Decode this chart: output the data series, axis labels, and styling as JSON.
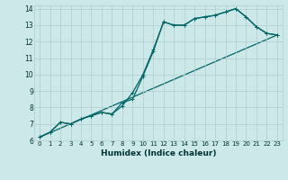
{
  "title": "",
  "xlabel": "Humidex (Indice chaleur)",
  "xlim": [
    -0.5,
    23.5
  ],
  "ylim": [
    6,
    14.2
  ],
  "xticks": [
    0,
    1,
    2,
    3,
    4,
    5,
    6,
    7,
    8,
    9,
    10,
    11,
    12,
    13,
    14,
    15,
    16,
    17,
    18,
    19,
    20,
    21,
    22,
    23
  ],
  "yticks": [
    6,
    7,
    8,
    9,
    10,
    11,
    12,
    13,
    14
  ],
  "bg_color": "#cce8e8",
  "grid_color": "#b0cccc",
  "line_color": "#006666",
  "line1_x": [
    0,
    1,
    2,
    3,
    4,
    5,
    6,
    7,
    8,
    9,
    10,
    11,
    12,
    13,
    14,
    15,
    16,
    17,
    18,
    19,
    20,
    21,
    22,
    23
  ],
  "line1_y": [
    6.2,
    6.5,
    7.1,
    7.0,
    7.3,
    7.5,
    7.7,
    7.6,
    8.1,
    8.9,
    10.0,
    11.5,
    13.2,
    13.0,
    13.0,
    13.4,
    13.5,
    13.6,
    13.8,
    14.0,
    13.5,
    12.9,
    12.5,
    12.4
  ],
  "line2_x": [
    0,
    1,
    2,
    3,
    4,
    5,
    6,
    7,
    8,
    9,
    10,
    11,
    12,
    13,
    14,
    15,
    16,
    17,
    18,
    19,
    20,
    21,
    22,
    23
  ],
  "line2_y": [
    6.2,
    6.5,
    7.1,
    7.0,
    7.3,
    7.5,
    7.7,
    7.6,
    8.3,
    8.5,
    9.9,
    11.4,
    13.2,
    13.0,
    13.0,
    13.4,
    13.5,
    13.6,
    13.8,
    14.0,
    13.5,
    12.9,
    12.5,
    12.4
  ],
  "line3_x": [
    0,
    23
  ],
  "line3_y": [
    6.2,
    12.4
  ],
  "marker_size": 2.5,
  "linewidth": 0.9
}
